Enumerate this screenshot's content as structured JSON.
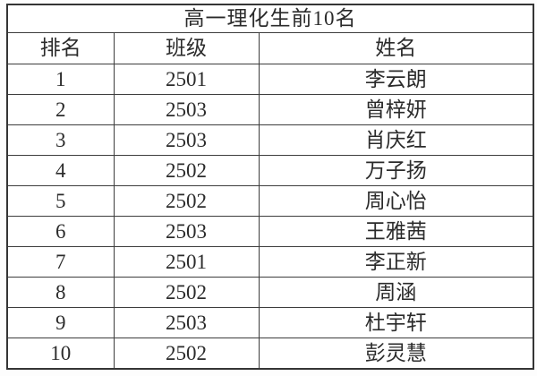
{
  "table": {
    "title": "高一理化生前10名",
    "columns": [
      "排名",
      "班级",
      "姓名"
    ],
    "rows": [
      {
        "rank": "1",
        "class": "2501",
        "name": "李云朗"
      },
      {
        "rank": "2",
        "class": "2503",
        "name": "曾梓妍"
      },
      {
        "rank": "3",
        "class": "2503",
        "name": "肖庆红"
      },
      {
        "rank": "4",
        "class": "2502",
        "name": "万子扬"
      },
      {
        "rank": "5",
        "class": "2502",
        "name": "周心怡"
      },
      {
        "rank": "6",
        "class": "2503",
        "name": "王雅茜"
      },
      {
        "rank": "7",
        "class": "2501",
        "name": "李正新"
      },
      {
        "rank": "8",
        "class": "2502",
        "name": "周涵"
      },
      {
        "rank": "9",
        "class": "2503",
        "name": "杜宇轩"
      },
      {
        "rank": "10",
        "class": "2502",
        "name": "彭灵慧"
      }
    ],
    "colors": {
      "border": "#3d3d3d",
      "outer_border": "#353535",
      "text": "#2b2b2b",
      "title_text": "#151515",
      "background": "#ffffff"
    }
  }
}
